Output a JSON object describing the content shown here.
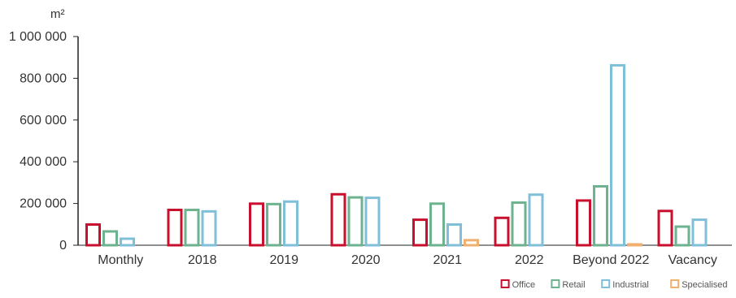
{
  "chart_data": {
    "type": "bar",
    "ylabel": "m²",
    "ylim": [
      0,
      1000000
    ],
    "yticks": [
      {
        "value": 0,
        "label": "0"
      },
      {
        "value": 200000,
        "label": "200 000"
      },
      {
        "value": 400000,
        "label": "400 000"
      },
      {
        "value": 600000,
        "label": "600 000"
      },
      {
        "value": 800000,
        "label": "800 000"
      },
      {
        "value": 1000000,
        "label": "1 000 000"
      }
    ],
    "categories": [
      "Monthly",
      "2018",
      "2019",
      "2020",
      "2021",
      "2022",
      "Beyond 2022",
      "Vacancy"
    ],
    "series": [
      {
        "name": "Office",
        "color": "#c8102e",
        "values": [
          105000,
          175000,
          205000,
          250000,
          128000,
          137000,
          220000,
          170000
        ]
      },
      {
        "name": "Retail",
        "color": "#6db38f",
        "values": [
          72000,
          175000,
          203000,
          235000,
          205000,
          210000,
          288000,
          95000
        ]
      },
      {
        "name": "Industrial",
        "color": "#7fbfd8",
        "values": [
          37000,
          168000,
          215000,
          233000,
          105000,
          248000,
          868000,
          128000
        ]
      },
      {
        "name": "Specialised",
        "color": "#f0b070",
        "values": [
          0,
          0,
          0,
          0,
          30000,
          0,
          10000,
          0
        ]
      }
    ],
    "grid": false,
    "legend_position": "bottom-right"
  }
}
